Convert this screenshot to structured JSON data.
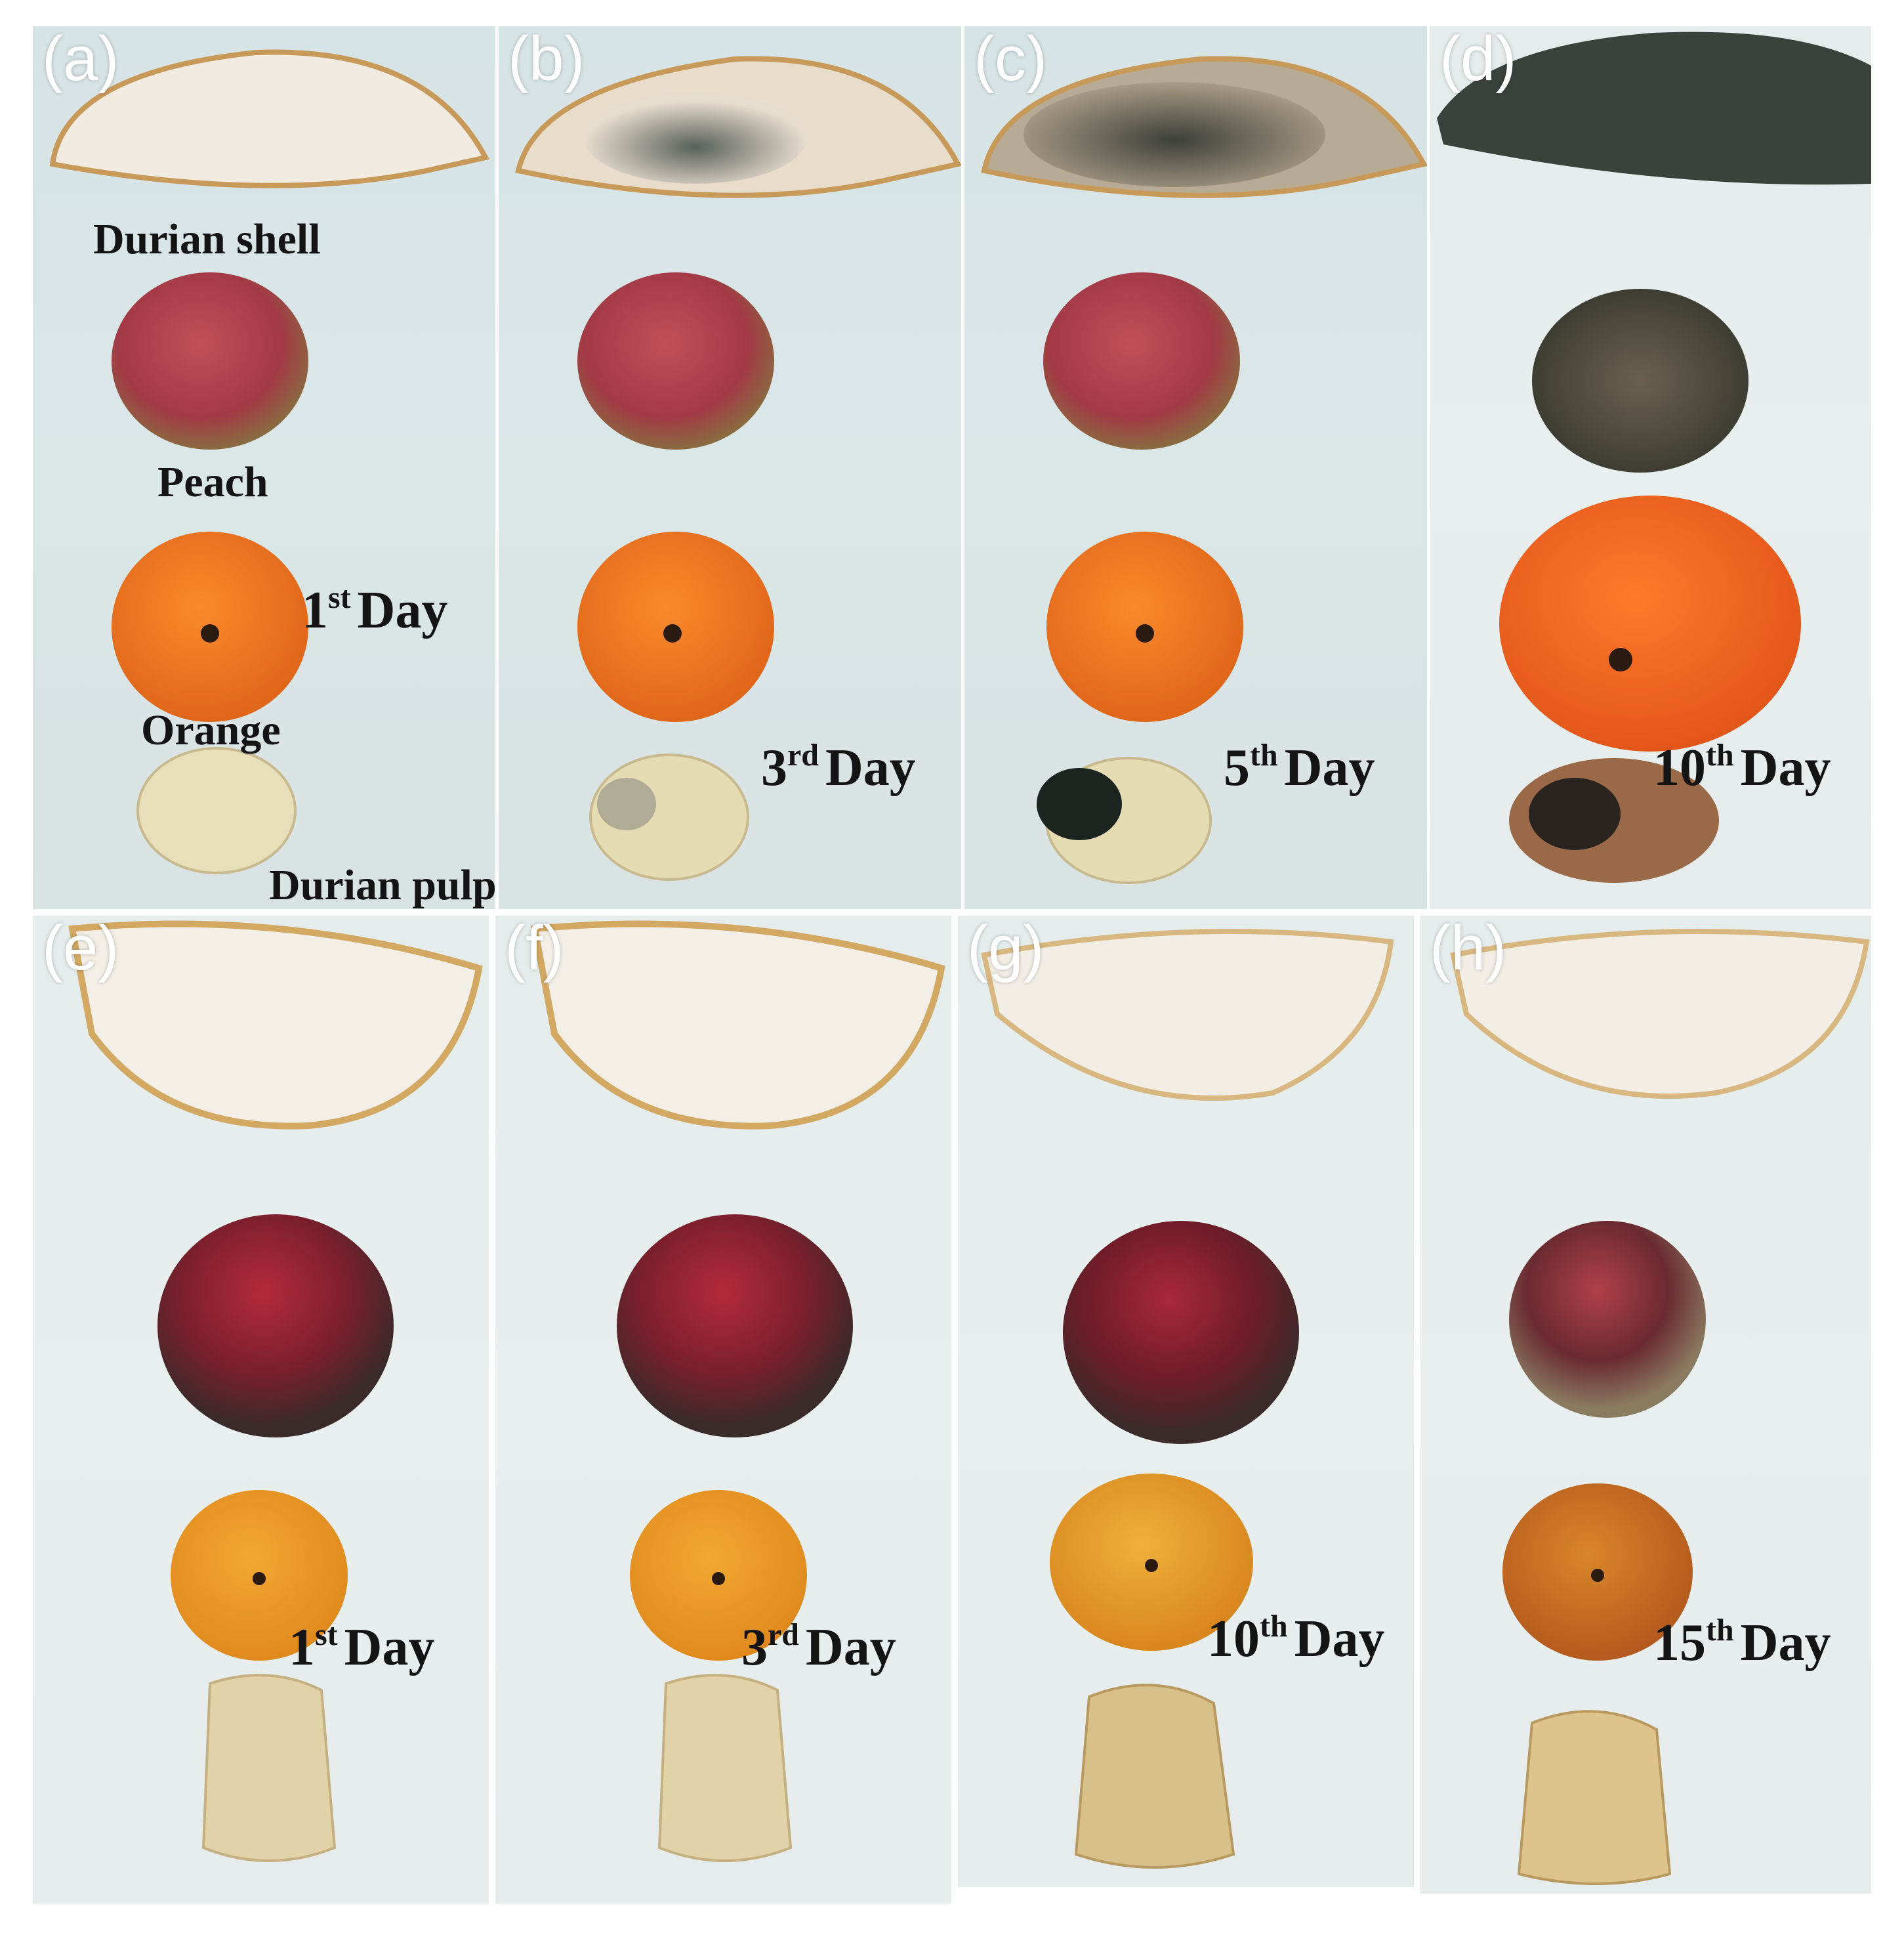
{
  "panels": [
    {
      "tag": "(a)",
      "day_num": "1",
      "day_sup": "st",
      "day_word": "Day"
    },
    {
      "tag": "(b)",
      "day_num": "3",
      "day_sup": "rd",
      "day_word": "Day"
    },
    {
      "tag": "(c)",
      "day_num": "5",
      "day_sup": "th",
      "day_word": "Day"
    },
    {
      "tag": "(d)",
      "day_num": "10",
      "day_sup": "th",
      "day_word": "Day"
    },
    {
      "tag": "(e)",
      "day_num": "1",
      "day_sup": "st",
      "day_word": "Day"
    },
    {
      "tag": "(f)",
      "day_num": "3",
      "day_sup": "rd",
      "day_word": "Day"
    },
    {
      "tag": "(g)",
      "day_num": "10",
      "day_sup": "th",
      "day_word": "Day"
    },
    {
      "tag": "(h)",
      "day_num": "15",
      "day_sup": "th",
      "day_word": "Day"
    }
  ],
  "labels": {
    "durian_shell": "Durian  shell",
    "peach": "Peach",
    "orange": "Orange",
    "durian_pulp": "Durian  pulp"
  },
  "colors": {
    "peach": "#b0414a",
    "peach_treated": "#7a1f2c",
    "orange": "#f07a1c",
    "orange_treated": "#e89a2a",
    "durian_shell": "#efe8dc",
    "mold": "#3c3f37",
    "durian_pulp": "#e6dcb4"
  }
}
